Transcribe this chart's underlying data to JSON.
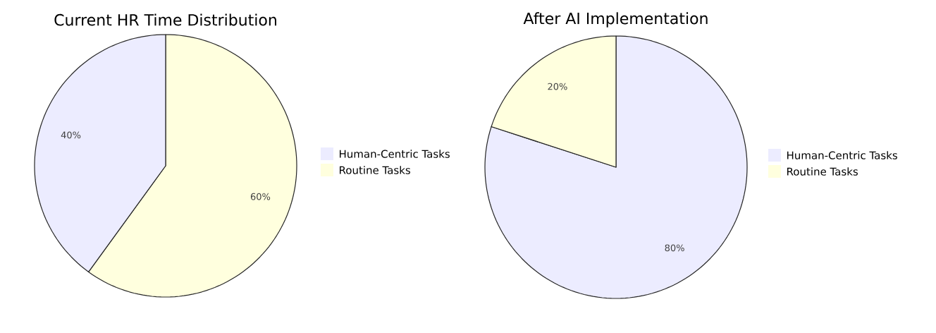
{
  "chart_data": [
    {
      "type": "pie",
      "title": "Current HR Time Distribution",
      "categories": [
        "Human-Centric Tasks",
        "Routine Tasks"
      ],
      "values": [
        40,
        60
      ],
      "value_labels": [
        "40%",
        "60%"
      ],
      "colors": [
        "#ececff",
        "#ffffde"
      ],
      "legend": "right"
    },
    {
      "type": "pie",
      "title": "After AI Implementation",
      "categories": [
        "Human-Centric Tasks",
        "Routine Tasks"
      ],
      "values": [
        80,
        20
      ],
      "value_labels": [
        "80%",
        "20%"
      ],
      "colors": [
        "#ececff",
        "#ffffde"
      ],
      "legend": "right"
    }
  ]
}
